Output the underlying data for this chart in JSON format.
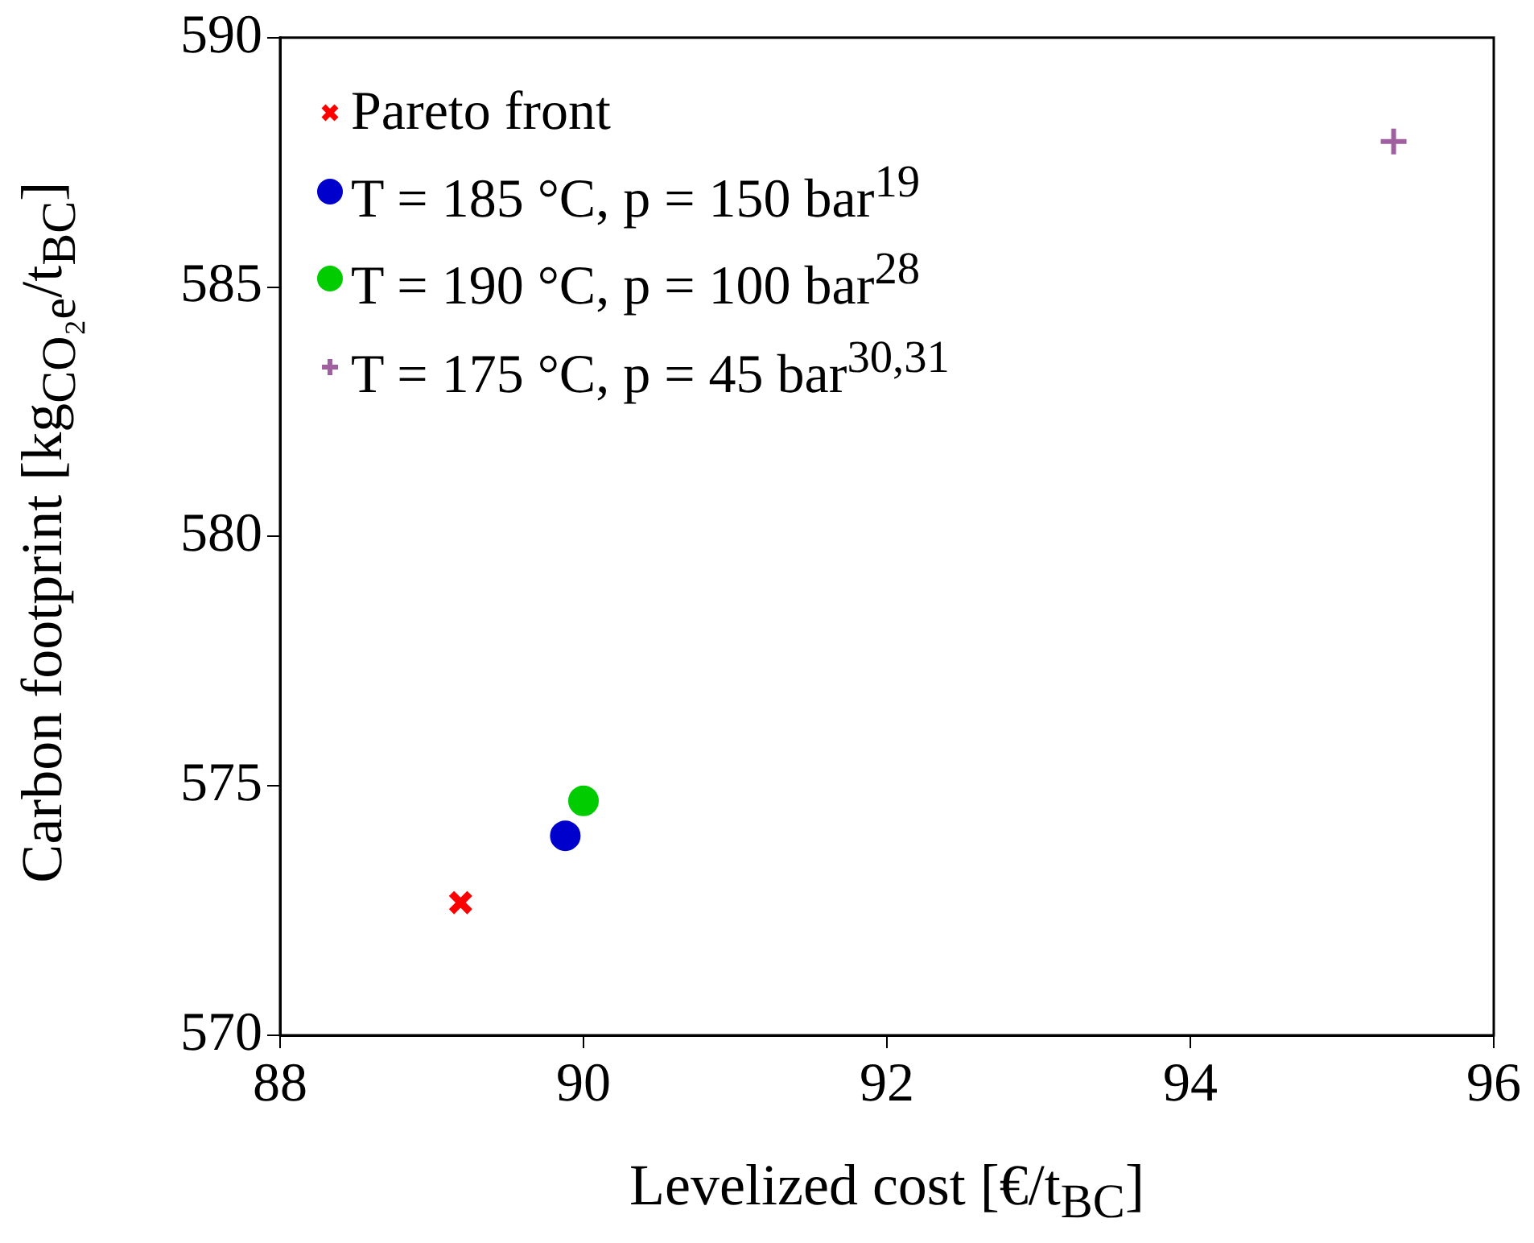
{
  "chart_data": {
    "type": "scatter",
    "xlabel": "Levelized cost [€/t$_{BC}$]",
    "ylabel": "Carbon footprint [kg$_{CO₂e}$/t$_{BC}$]",
    "xlim": [
      88,
      96
    ],
    "xticks": [
      88,
      90,
      92,
      94,
      96
    ],
    "ylim": [
      570,
      590
    ],
    "yticks": [
      570,
      575,
      580,
      585,
      590
    ],
    "grid": false,
    "legend": "top left",
    "series": [
      {
        "name": "Pareto front",
        "color": "#ff0000",
        "marker": "cross",
        "x": [
          89.19
        ],
        "values": [
          572.66
        ]
      },
      {
        "name": "T = 185 °C, p = 150 bar$^{19}$",
        "color": "#0000cc",
        "marker": "circle",
        "x": [
          89.88
        ],
        "values": [
          574.0
        ]
      },
      {
        "name": "T = 190 °C, p = 100 bar$^{28}$",
        "color": "#00cc00",
        "marker": "circle",
        "x": [
          90.0
        ],
        "values": [
          574.7
        ]
      },
      {
        "name": "T = 175 °C, p = 45 bar$^{30,31}$",
        "color": "#a060a0",
        "marker": "plus",
        "x": [
          95.34
        ],
        "values": [
          587.92
        ]
      }
    ]
  }
}
